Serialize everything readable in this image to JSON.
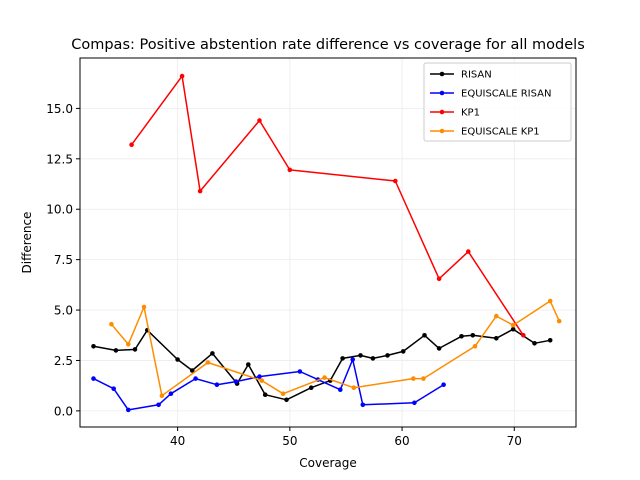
{
  "chart_data": {
    "type": "line",
    "title": "Compas: Positive abstention rate difference vs coverage for all models",
    "xlabel": "Coverage",
    "ylabel": "Difference",
    "xlim": [
      31.3,
      75.5
    ],
    "ylim": [
      -0.8,
      17.5
    ],
    "xticks": [
      30,
      40,
      50,
      60,
      70
    ],
    "yticks": [
      0.0,
      2.5,
      5.0,
      7.5,
      10.0,
      12.5,
      15.0
    ],
    "grid": true,
    "legend_position": "top-right",
    "series": [
      {
        "name": "RISAN",
        "color": "#000000",
        "points": [
          [
            32.5,
            3.2
          ],
          [
            34.5,
            3.0
          ],
          [
            36.2,
            3.05
          ],
          [
            37.3,
            4.0
          ],
          [
            40.0,
            2.55
          ],
          [
            41.3,
            2.0
          ],
          [
            43.1,
            2.85
          ],
          [
            45.3,
            1.35
          ],
          [
            46.3,
            2.3
          ],
          [
            47.8,
            0.8
          ],
          [
            49.7,
            0.55
          ],
          [
            51.9,
            1.15
          ],
          [
            53.6,
            1.5
          ],
          [
            54.7,
            2.6
          ],
          [
            56.3,
            2.75
          ],
          [
            57.4,
            2.6
          ],
          [
            58.7,
            2.75
          ],
          [
            60.1,
            2.95
          ],
          [
            62.0,
            3.75
          ],
          [
            63.3,
            3.1
          ],
          [
            65.3,
            3.7
          ],
          [
            66.3,
            3.75
          ],
          [
            68.4,
            3.6
          ],
          [
            69.9,
            4.05
          ],
          [
            71.8,
            3.35
          ],
          [
            73.2,
            3.5
          ]
        ]
      },
      {
        "name": "EQUISCALE RISAN",
        "color": "#0000ff",
        "points": [
          [
            32.5,
            1.6
          ],
          [
            34.3,
            1.1
          ],
          [
            35.6,
            0.05
          ],
          [
            38.3,
            0.3
          ],
          [
            39.4,
            0.85
          ],
          [
            41.6,
            1.6
          ],
          [
            43.5,
            1.3
          ],
          [
            45.2,
            1.45
          ],
          [
            47.3,
            1.7
          ],
          [
            50.9,
            1.95
          ],
          [
            52.5,
            1.55
          ],
          [
            54.5,
            1.05
          ],
          [
            55.6,
            2.55
          ],
          [
            56.5,
            0.3
          ],
          [
            61.1,
            0.4
          ],
          [
            63.7,
            1.3
          ]
        ]
      },
      {
        "name": "KP1",
        "color": "#ff0000",
        "points": [
          [
            35.9,
            13.2
          ],
          [
            40.4,
            16.6
          ],
          [
            42.0,
            10.9
          ],
          [
            47.3,
            14.4
          ],
          [
            50.0,
            11.95
          ],
          [
            59.4,
            11.4
          ],
          [
            63.3,
            6.55
          ],
          [
            65.9,
            7.9
          ],
          [
            70.8,
            3.75
          ]
        ]
      },
      {
        "name": "EQUISCALE KP1",
        "color": "#ff8c00",
        "points": [
          [
            34.1,
            4.3
          ],
          [
            35.6,
            3.3
          ],
          [
            37.0,
            5.15
          ],
          [
            38.6,
            0.75
          ],
          [
            42.7,
            2.4
          ],
          [
            47.5,
            1.5
          ],
          [
            49.4,
            0.85
          ],
          [
            53.1,
            1.65
          ],
          [
            55.7,
            1.15
          ],
          [
            61.0,
            1.6
          ],
          [
            61.9,
            1.6
          ],
          [
            66.5,
            3.2
          ],
          [
            68.4,
            4.7
          ],
          [
            69.9,
            4.25
          ],
          [
            73.2,
            5.45
          ],
          [
            74.0,
            4.45
          ]
        ]
      }
    ]
  }
}
